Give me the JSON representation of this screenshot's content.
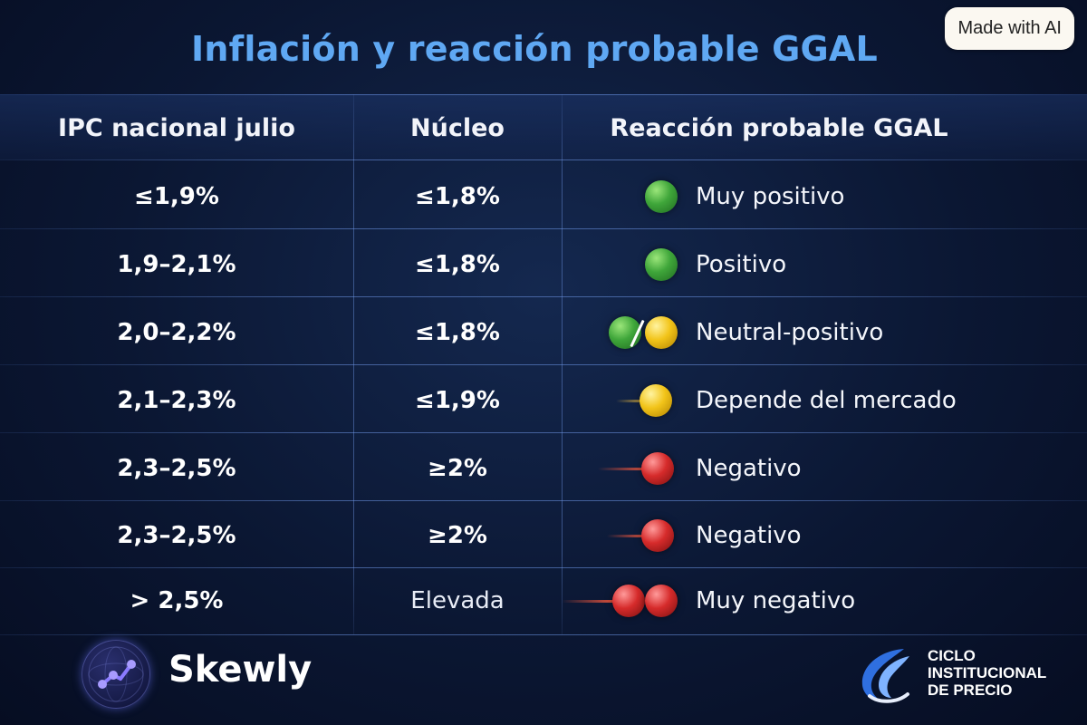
{
  "badge": {
    "label": "Made with AI"
  },
  "title": "Inflación y reacción probable GGAL",
  "table": {
    "headers": [
      "IPC nacional julio",
      "Núcleo",
      "Reacción probable GGAL"
    ],
    "rows": [
      {
        "ipc": "≤1,9%",
        "nucleo": "≤1,8%",
        "reaction": "Muy positivo",
        "indicator": "green"
      },
      {
        "ipc": "1,9–2,1%",
        "nucleo": "≤1,8%",
        "reaction": "Positivo",
        "indicator": "green"
      },
      {
        "ipc": "2,0–2,2%",
        "nucleo": "≤1,8%",
        "reaction": "Neutral-positivo",
        "indicator": "green-yellow"
      },
      {
        "ipc": "2,1–2,3%",
        "nucleo": "≤1,9%",
        "reaction": "Depende del mercado",
        "indicator": "yellow"
      },
      {
        "ipc": "2,3–2,5%",
        "nucleo": "≥2%",
        "reaction": "Negativo",
        "indicator": "red"
      },
      {
        "ipc": "2,3–2,5%",
        "nucleo": "≥2%",
        "reaction": "Negativo",
        "indicator": "red"
      },
      {
        "ipc": "> 2,5%",
        "nucleo": "Elevada",
        "reaction": "Muy negativo",
        "indicator": "red-red"
      }
    ]
  },
  "brands": {
    "left": {
      "name": "Skewly",
      "icon": "skewly-logo-icon"
    },
    "right": {
      "lines": [
        "CICLO",
        "INSTITUCIONAL",
        "DE PRECIO"
      ],
      "icon": "ciclo-logo-icon"
    }
  },
  "colors": {
    "title": "#5fa8f3",
    "background": "#0b1733",
    "green": "#3fa63a",
    "yellow": "#f2c419",
    "red": "#d62b2b"
  }
}
